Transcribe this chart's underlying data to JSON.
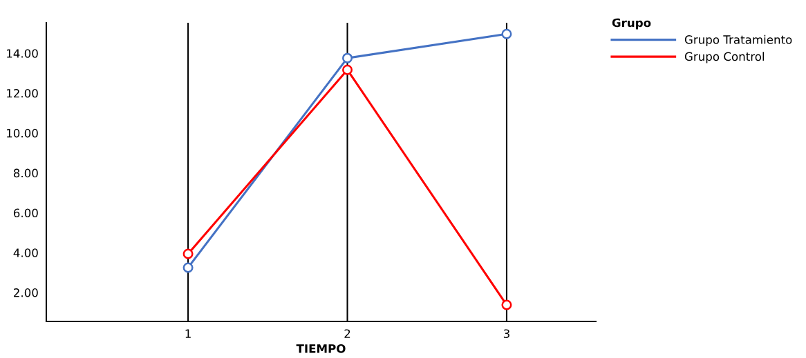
{
  "chart_data": {
    "type": "line",
    "xlabel": "TIEMPO",
    "legend_title": "Grupo",
    "x": [
      1,
      2,
      3
    ],
    "series": [
      {
        "name": "Grupo Tratamiento",
        "color": "#4472c4",
        "values": [
          3.25,
          13.76,
          14.97
        ]
      },
      {
        "name": "Grupo Control",
        "color": "#ff0000",
        "values": [
          3.94,
          13.17,
          1.38
        ]
      }
    ],
    "xlim": [
      0.11,
      3.56
    ],
    "xticks": [
      1,
      2,
      3
    ],
    "ylim": [
      0.55,
      15.53
    ],
    "yticks": [
      {
        "value": 2,
        "label": "2.00"
      },
      {
        "value": 4,
        "label": "4.00"
      },
      {
        "value": 6,
        "label": "6.00"
      },
      {
        "value": 8,
        "label": "8.00"
      },
      {
        "value": 10,
        "label": "10.00"
      },
      {
        "value": 12,
        "label": "12.00"
      },
      {
        "value": 14,
        "label": "14.00"
      }
    ],
    "grid": "x",
    "legend": "top right",
    "marker": "circle",
    "line_style": "solid"
  }
}
